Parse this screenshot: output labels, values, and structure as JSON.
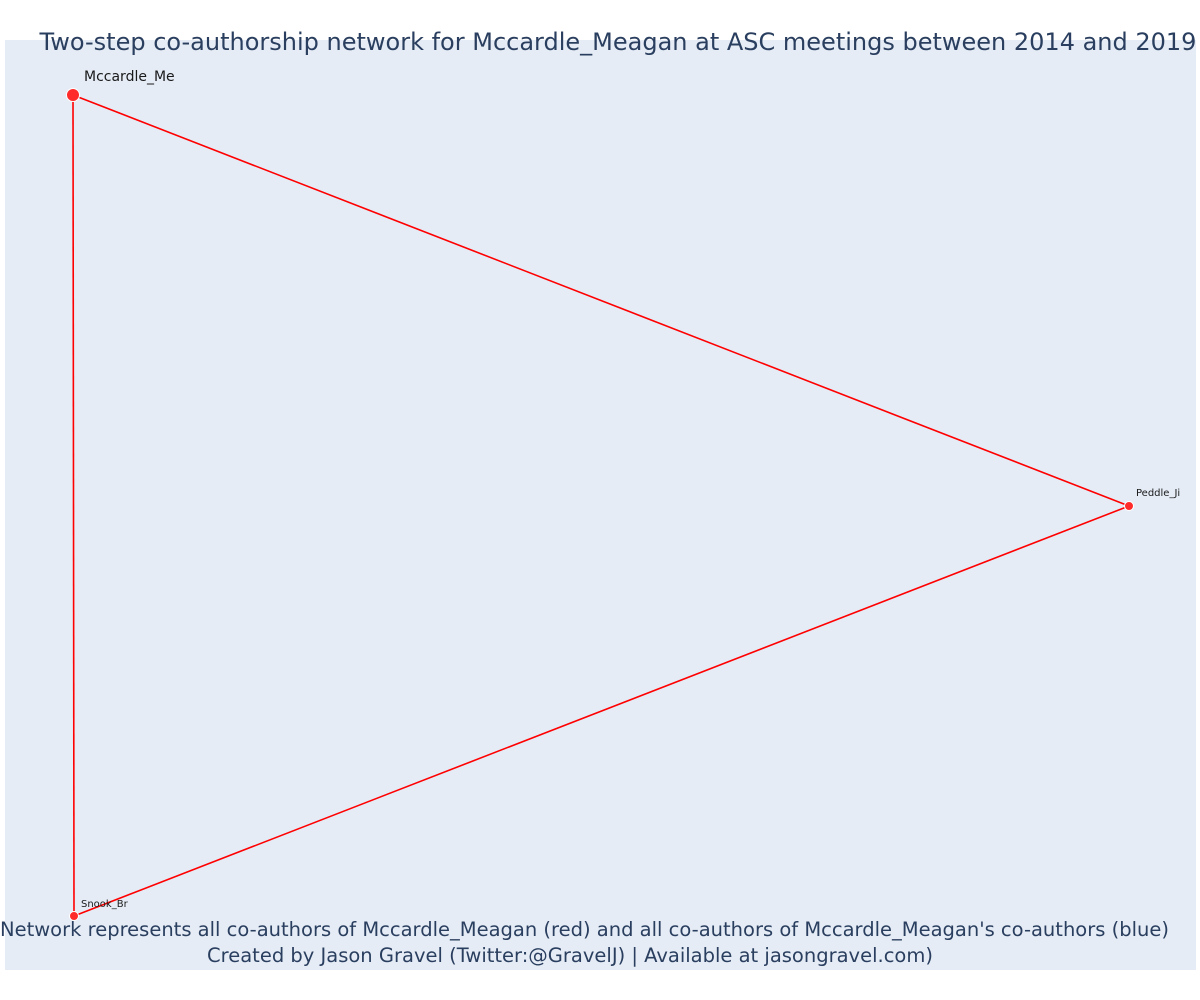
{
  "title": "Two-step co-authorship network for Mccardle_Meagan at ASC meetings between 2014 and 2019",
  "caption_line1": "Network represents all co-authors of Mccardle_Meagan (red) and all co-authors of Mccardle_Meagan's co-authors (blue)",
  "caption_line2": "Created by Jason Gravel (Twitter:@GravelJ) | Available at jasongravel.com)",
  "colors": {
    "plot_background": "#e5ecf6",
    "edge": "#ff0000",
    "first_step_node": "#ff2a2a",
    "title_text": "#2a3f5f"
  },
  "network": {
    "nodes": [
      {
        "id": "Mccardle_Meagan",
        "label": "Mccardle_Me",
        "step": "focal"
      },
      {
        "id": "Peddle_Ji",
        "label": "Peddle_Ji",
        "step": "first"
      },
      {
        "id": "Snook_Br",
        "label": "Snook_Br",
        "step": "first"
      }
    ],
    "edges": [
      {
        "source": "Mccardle_Meagan",
        "target": "Peddle_Ji"
      },
      {
        "source": "Mccardle_Meagan",
        "target": "Snook_Br"
      },
      {
        "source": "Peddle_Ji",
        "target": "Snook_Br"
      }
    ]
  }
}
